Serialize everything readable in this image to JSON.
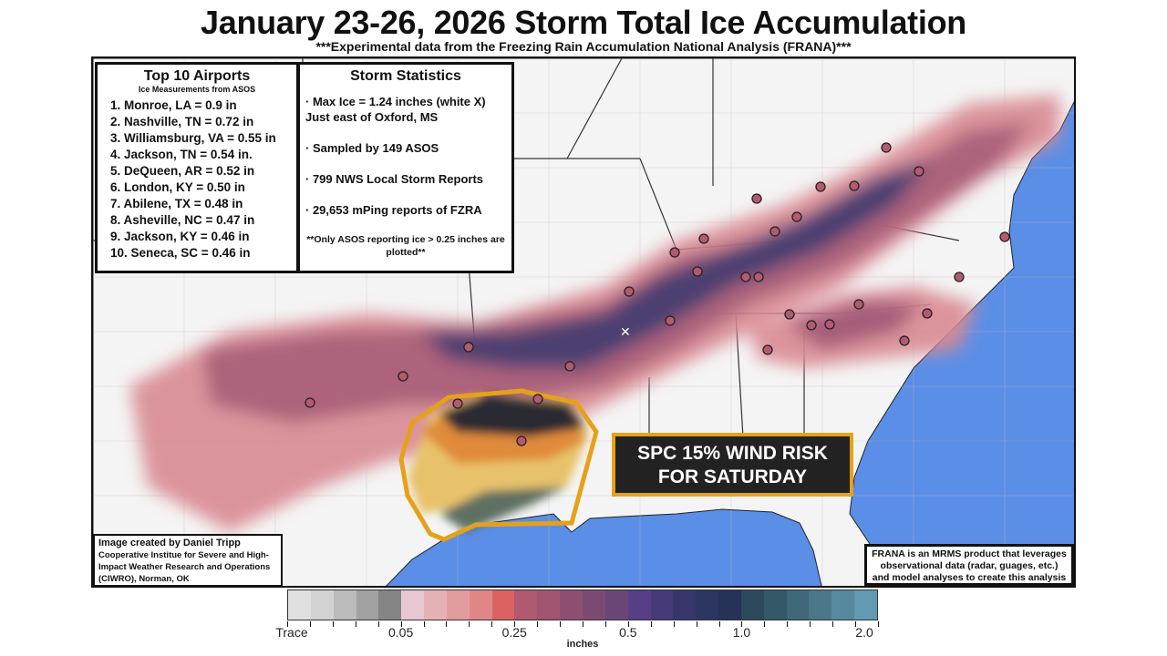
{
  "title": "January 23-26, 2026 Storm Total Ice Accumulation",
  "subtitle": "***Experimental data from the Freezing Rain Accumulation National Analysis (FRANA)***",
  "airports": {
    "heading": "Top 10 Airports",
    "subheading": "Ice Measurements from ASOS",
    "items": [
      "1. Monroe, LA  = 0.9 in",
      "2. Nashville, TN = 0.72 in",
      "3. Williamsburg, VA = 0.55 in",
      "4. Jackson, TN = 0.54 in.",
      "5. DeQueen, AR = 0.52 in",
      "6. London, KY = 0.50 in",
      "7. Abilene, TX = 0.48 in",
      "8. Asheville, NC = 0.47 in",
      "9. Jackson, KY = 0.46 in",
      "10. Seneca, SC = 0.46 in"
    ]
  },
  "stats": {
    "heading": "Storm Statistics",
    "items": [
      "· Max Ice = 1.24 inches (white X) Just east of Oxford, MS",
      "· Sampled by 149 ASOS",
      "· 799 NWS Local Storm Reports",
      "· 29,653 mPing reports of FZRA"
    ],
    "note": "**Only ASOS reporting ice > 0.25 inches are plotted**"
  },
  "credit": {
    "line1": "Image created by Daniel Tripp",
    "line2": "Cooperative Institue for Severe and High-Impact Weather Research and Operations (CIWRO), Norman, OK"
  },
  "frana_note": "FRANA is an MRMS product that leverages observational data (radar, guages, etc.) and model analyses to create this analysis",
  "spc_label": {
    "line1": "SPC 15% WIND RISK",
    "line2": "FOR SATURDAY"
  },
  "colorbar": {
    "unit": "inches",
    "tick_labels": [
      "Trace",
      "0.05",
      "0.25",
      "0.5",
      "1.0",
      "2.0"
    ],
    "colors": [
      "#e0e0e0",
      "#d2d2d2",
      "#bcbcbc",
      "#a2a2a2",
      "#858585",
      "#e8c6d2",
      "#e6b1b4",
      "#e39c9e",
      "#df8787",
      "#dc6262",
      "#b05a70",
      "#a05470",
      "#8d4f71",
      "#7b4a72",
      "#6a4677",
      "#573f87",
      "#463a79",
      "#37376c",
      "#2c3561",
      "#243357",
      "#2c4a5c",
      "#355868",
      "#406878",
      "#4a7888",
      "#56899d",
      "#6399b1"
    ]
  },
  "colors": {
    "ocean": "#5b8ee6",
    "land": "#f4f4f4",
    "risk_outline": "#e5a11a"
  }
}
